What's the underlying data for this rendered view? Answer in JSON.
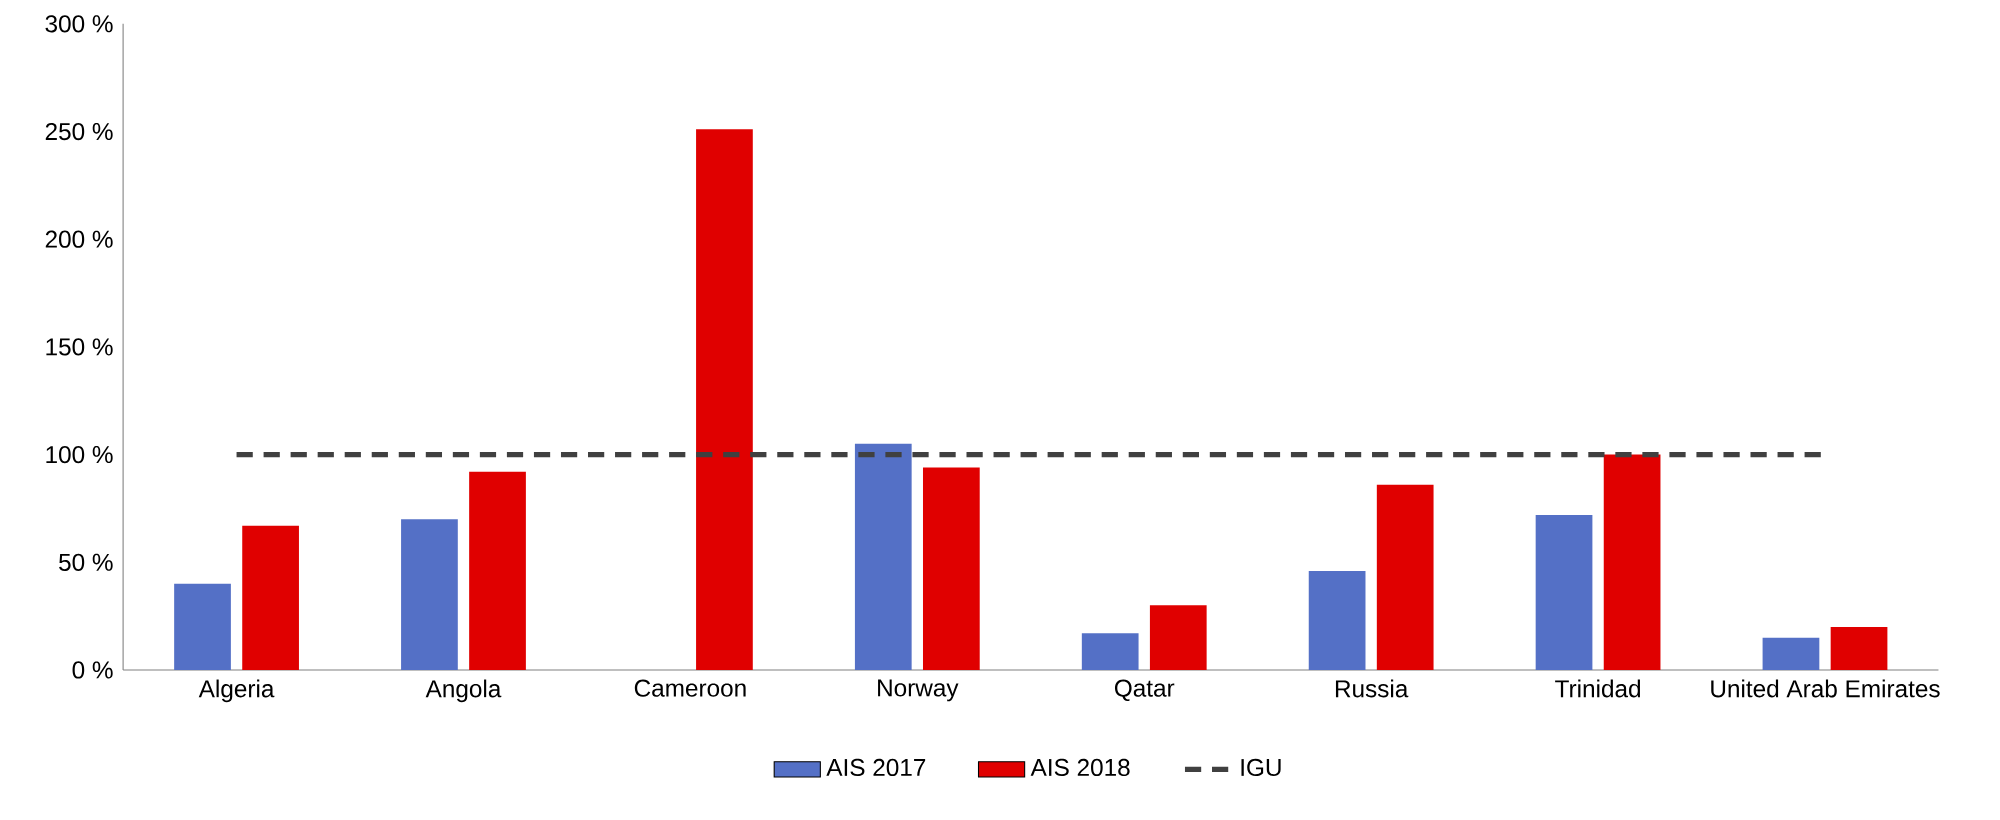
{
  "chart_data": {
    "type": "bar",
    "categories": [
      "Algeria",
      "Angola",
      "Cameroon",
      "Norway",
      "Qatar",
      "Russia",
      "Trinidad",
      "United Arab Emirates"
    ],
    "series": [
      {
        "name": "AIS 2017",
        "color": "#5470c6",
        "values": [
          40,
          70,
          null,
          105,
          17,
          46,
          72,
          15
        ]
      },
      {
        "name": "AIS 2018",
        "color": "#e00000",
        "values": [
          67,
          92,
          251,
          94,
          30,
          86,
          100,
          20
        ]
      },
      {
        "name": "IGU",
        "type": "line",
        "color": "#404040",
        "line_style": "dashed",
        "values": [
          100,
          100,
          100,
          100,
          100,
          100,
          100,
          100
        ]
      }
    ],
    "ylim": [
      0,
      300
    ],
    "yticks": [
      {
        "value": 0,
        "label": "0 %"
      },
      {
        "value": 50,
        "label": "50 %"
      },
      {
        "value": 100,
        "label": "100 %"
      },
      {
        "value": 150,
        "label": "150 %"
      },
      {
        "value": 200,
        "label": "200 %"
      },
      {
        "value": 250,
        "label": "250 %"
      },
      {
        "value": 300,
        "label": "300 %"
      }
    ],
    "grid": false,
    "legend": "bottom"
  }
}
